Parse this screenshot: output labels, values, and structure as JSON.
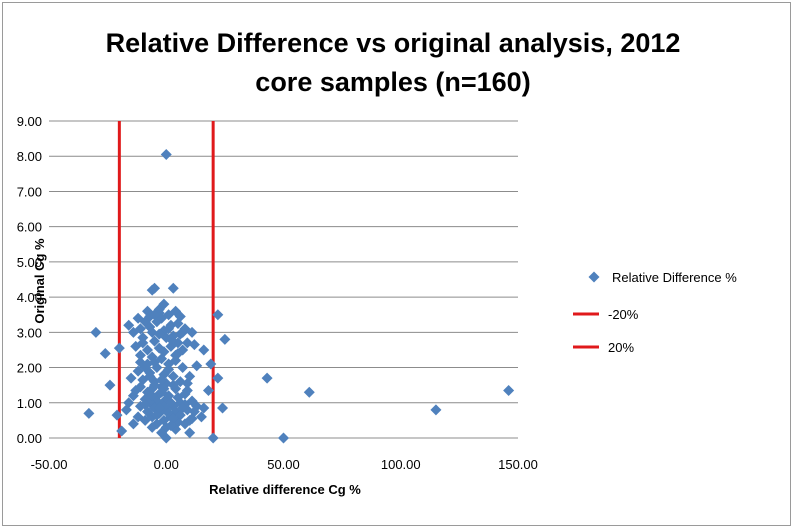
{
  "chart_data": {
    "type": "scatter",
    "title_lines": [
      "Relative Difference vs original analysis, 2012",
      "core samples (n=160)"
    ],
    "xlabel": "Relative difference Cg %",
    "ylabel": "Original Cg %",
    "xlim": [
      -50,
      150
    ],
    "ylim": [
      0,
      9
    ],
    "x_ticks": [
      -50,
      0,
      50,
      100,
      150
    ],
    "x_tick_labels": [
      "-50.00",
      "0.00",
      "50.00",
      "100.00",
      "150.00"
    ],
    "y_ticks": [
      0,
      1,
      2,
      3,
      4,
      5,
      6,
      7,
      8,
      9
    ],
    "y_tick_labels": [
      "0.00",
      "1.00",
      "2.00",
      "3.00",
      "4.00",
      "5.00",
      "6.00",
      "7.00",
      "8.00",
      "9.00"
    ],
    "grid": "horizontal",
    "legend_position": "right",
    "colors": {
      "points": "#4f81bd",
      "lines": "#e0191b",
      "grid": "#8c8c8c"
    },
    "series": [
      {
        "name": "Relative Difference %",
        "kind": "scatter",
        "points": [
          [
            0,
            8.05
          ],
          [
            3,
            4.25
          ],
          [
            -6,
            4.2
          ],
          [
            -5,
            4.25
          ],
          [
            -1,
            3.8
          ],
          [
            -8,
            3.6
          ],
          [
            -3,
            3.55
          ],
          [
            4,
            3.6
          ],
          [
            22,
            3.5
          ],
          [
            -12,
            3.4
          ],
          [
            -9,
            3.3
          ],
          [
            -7,
            3.45
          ],
          [
            -4,
            3.3
          ],
          [
            -2,
            3.4
          ],
          [
            1,
            3.5
          ],
          [
            2,
            3.2
          ],
          [
            5,
            3.25
          ],
          [
            8,
            3.1
          ],
          [
            11,
            3.0
          ],
          [
            -16,
            3.2
          ],
          [
            -30,
            3.0
          ],
          [
            -14,
            3.0
          ],
          [
            -11,
            3.1
          ],
          [
            -6,
            3.0
          ],
          [
            -1,
            3.05
          ],
          [
            3,
            2.9
          ],
          [
            6,
            2.95
          ],
          [
            -10,
            2.85
          ],
          [
            -5,
            2.75
          ],
          [
            0,
            2.85
          ],
          [
            9,
            2.7
          ],
          [
            12,
            2.65
          ],
          [
            25,
            2.8
          ],
          [
            -20,
            2.55
          ],
          [
            -26,
            2.4
          ],
          [
            -13,
            2.6
          ],
          [
            -8,
            2.5
          ],
          [
            -3,
            2.55
          ],
          [
            2,
            2.6
          ],
          [
            7,
            2.5
          ],
          [
            16,
            2.5
          ],
          [
            -11,
            2.35
          ],
          [
            -6,
            2.3
          ],
          [
            -2,
            2.25
          ],
          [
            4,
            2.2
          ],
          [
            13,
            2.05
          ],
          [
            19,
            2.1
          ],
          [
            -9,
            2.0
          ],
          [
            -4,
            2.0
          ],
          [
            1,
            2.1
          ],
          [
            7,
            2.0
          ],
          [
            -12,
            1.9
          ],
          [
            -7,
            1.85
          ],
          [
            -1,
            1.8
          ],
          [
            3,
            1.75
          ],
          [
            10,
            1.75
          ],
          [
            22,
            1.7
          ],
          [
            43,
            1.7
          ],
          [
            -15,
            1.7
          ],
          [
            -10,
            1.65
          ],
          [
            -5,
            1.6
          ],
          [
            0,
            1.55
          ],
          [
            6,
            1.6
          ],
          [
            -24,
            1.5
          ],
          [
            -11,
            1.45
          ],
          [
            -6,
            1.4
          ],
          [
            -2,
            1.45
          ],
          [
            4,
            1.4
          ],
          [
            9,
            1.35
          ],
          [
            18,
            1.35
          ],
          [
            61,
            1.3
          ],
          [
            146,
            1.35
          ],
          [
            -8,
            1.3
          ],
          [
            -3,
            1.25
          ],
          [
            1,
            1.2
          ],
          [
            5,
            1.15
          ],
          [
            -14,
            1.2
          ],
          [
            -9,
            1.1
          ],
          [
            -4,
            1.05
          ],
          [
            0,
            1.1
          ],
          [
            6,
            1.0
          ],
          [
            11,
            1.05
          ],
          [
            -7,
            1.0
          ],
          [
            -2,
            0.95
          ],
          [
            3,
            0.9
          ],
          [
            8,
            0.95
          ],
          [
            13,
            0.9
          ],
          [
            16,
            0.85
          ],
          [
            24,
            0.85
          ],
          [
            115,
            0.8
          ],
          [
            -11,
            0.9
          ],
          [
            -5,
            0.85
          ],
          [
            0,
            0.8
          ],
          [
            4,
            0.75
          ],
          [
            9,
            0.8
          ],
          [
            -17,
            0.8
          ],
          [
            -8,
            0.75
          ],
          [
            -3,
            0.7
          ],
          [
            1,
            0.7
          ],
          [
            6,
            0.65
          ],
          [
            -33,
            0.7
          ],
          [
            -21,
            0.65
          ],
          [
            -12,
            0.6
          ],
          [
            -6,
            0.6
          ],
          [
            2,
            0.6
          ],
          [
            11,
            0.55
          ],
          [
            -9,
            0.5
          ],
          [
            -1,
            0.5
          ],
          [
            5,
            0.45
          ],
          [
            -14,
            0.4
          ],
          [
            -4,
            0.4
          ],
          [
            8,
            0.4
          ],
          [
            -6,
            0.3
          ],
          [
            0,
            0.3
          ],
          [
            4,
            0.25
          ],
          [
            -19,
            0.2
          ],
          [
            10,
            0.15
          ],
          [
            -2,
            0.15
          ],
          [
            0,
            0.0
          ],
          [
            20,
            0.0
          ],
          [
            50,
            0.0
          ],
          [
            -7,
            3.15
          ],
          [
            -3,
            2.95
          ],
          [
            2,
            2.8
          ],
          [
            5,
            2.4
          ],
          [
            -10,
            2.7
          ],
          [
            -5,
            2.15
          ],
          [
            1,
            1.95
          ],
          [
            -2,
            1.65
          ],
          [
            3,
            1.5
          ],
          [
            -6,
            1.2
          ],
          [
            2,
            1.0
          ],
          [
            -1,
            0.9
          ],
          [
            7,
            0.85
          ],
          [
            -9,
            0.95
          ],
          [
            -4,
            0.65
          ],
          [
            3,
            0.55
          ],
          [
            12,
            0.75
          ],
          [
            -13,
            1.35
          ],
          [
            8,
            1.25
          ],
          [
            -7,
            1.75
          ],
          [
            4,
            2.35
          ],
          [
            -3,
            3.65
          ],
          [
            6,
            3.45
          ],
          [
            -11,
            2.15
          ],
          [
            9,
            1.55
          ],
          [
            -1,
            2.45
          ],
          [
            -5,
            3.5
          ],
          [
            15,
            0.6
          ],
          [
            -16,
            1.0
          ],
          [
            1,
            3.1
          ],
          [
            -2,
            1.3
          ],
          [
            5,
            2.7
          ],
          [
            -8,
            2.1
          ],
          [
            2,
            0.35
          ],
          [
            -5,
            1.5
          ],
          [
            10,
            0.5
          ],
          [
            -1,
            1.4
          ],
          [
            7,
            3.0
          ],
          [
            -3,
            0.85
          ]
        ]
      },
      {
        "name": "-20%",
        "kind": "line",
        "points": [
          [
            -20,
            0
          ],
          [
            -20,
            9
          ]
        ]
      },
      {
        "name": "20%",
        "kind": "line",
        "points": [
          [
            20,
            0
          ],
          [
            20,
            9
          ]
        ]
      }
    ]
  }
}
